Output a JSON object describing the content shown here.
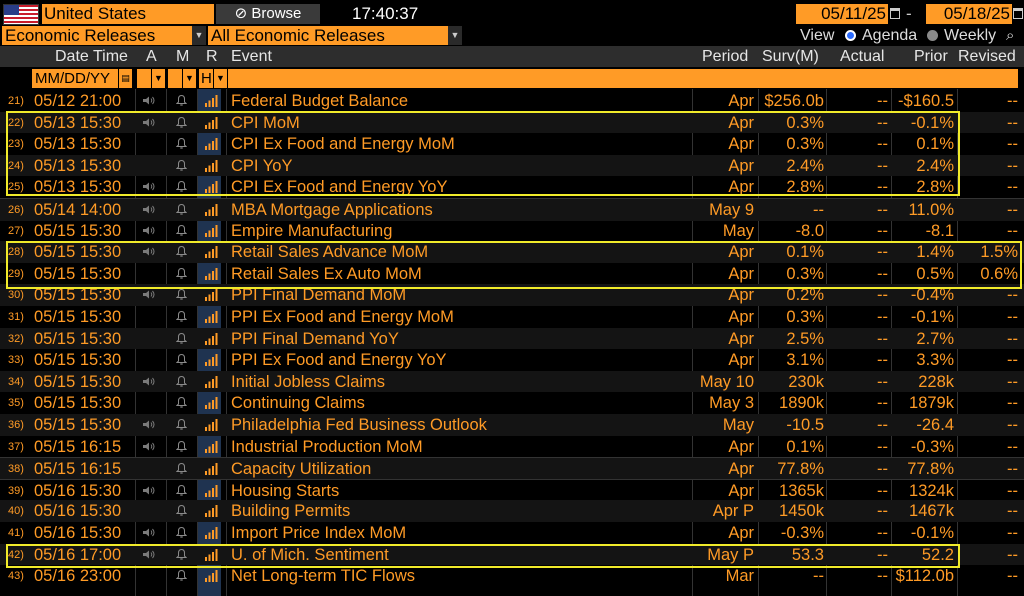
{
  "topbar": {
    "country": "United States",
    "browse_label": "Browse",
    "clock": "17:40:37",
    "start_date": "05/11/25",
    "end_date": "05/18/25",
    "date_dash": "-"
  },
  "filters": {
    "category": "Economic Releases",
    "releases": "All Economic Releases",
    "view_label": "View",
    "view_options": [
      "Agenda",
      "Weekly"
    ],
    "selected_view": "Agenda"
  },
  "columns": {
    "datetime": "Date Time",
    "a": "A",
    "m": "M",
    "r": "R",
    "event": "Event",
    "period": "Period",
    "surv": "Surv(M)",
    "actual": "Actual",
    "prior": "Prior",
    "revised": "Revised"
  },
  "filter_row": {
    "date_format": "MM/DD/YY",
    "r_value": "H"
  },
  "colors": {
    "accent": "#ff9b26",
    "highlight_box": "#f0ea2a",
    "r_column": "#1f3350"
  },
  "rows": [
    {
      "num": "21)",
      "dt": "05/12 21:00",
      "event": "Federal Budget Balance",
      "period": "Apr",
      "surv": "$256.0b",
      "actual": "--",
      "prior": "-$160.5",
      "revised": "--",
      "audio": true
    },
    {
      "num": "22)",
      "dt": "05/13 15:30",
      "event": "CPI MoM",
      "period": "Apr",
      "surv": "0.3%",
      "actual": "--",
      "prior": "-0.1%",
      "revised": "--",
      "audio": true
    },
    {
      "num": "23)",
      "dt": "05/13 15:30",
      "event": "CPI Ex Food and Energy MoM",
      "period": "Apr",
      "surv": "0.3%",
      "actual": "--",
      "prior": "0.1%",
      "revised": "--",
      "audio": false
    },
    {
      "num": "24)",
      "dt": "05/13 15:30",
      "event": "CPI YoY",
      "period": "Apr",
      "surv": "2.4%",
      "actual": "--",
      "prior": "2.4%",
      "revised": "--",
      "audio": false
    },
    {
      "num": "25)",
      "dt": "05/13 15:30",
      "event": "CPI Ex Food and Energy YoY",
      "period": "Apr",
      "surv": "2.8%",
      "actual": "--",
      "prior": "2.8%",
      "revised": "--",
      "audio": true
    },
    {
      "num": "26)",
      "dt": "05/14 14:00",
      "event": "MBA Mortgage Applications",
      "period": "May 9",
      "surv": "--",
      "actual": "--",
      "prior": "11.0%",
      "revised": "--",
      "audio": true
    },
    {
      "num": "27)",
      "dt": "05/15 15:30",
      "event": "Empire Manufacturing",
      "period": "May",
      "surv": "-8.0",
      "actual": "--",
      "prior": "-8.1",
      "revised": "--",
      "audio": true
    },
    {
      "num": "28)",
      "dt": "05/15 15:30",
      "event": "Retail Sales Advance MoM",
      "period": "Apr",
      "surv": "0.1%",
      "actual": "--",
      "prior": "1.4%",
      "revised": "1.5%",
      "audio": true
    },
    {
      "num": "29)",
      "dt": "05/15 15:30",
      "event": "Retail Sales Ex Auto MoM",
      "period": "Apr",
      "surv": "0.3%",
      "actual": "--",
      "prior": "0.5%",
      "revised": "0.6%",
      "audio": false
    },
    {
      "num": "30)",
      "dt": "05/15 15:30",
      "event": "PPI Final Demand MoM",
      "period": "Apr",
      "surv": "0.2%",
      "actual": "--",
      "prior": "-0.4%",
      "revised": "--",
      "audio": true
    },
    {
      "num": "31)",
      "dt": "05/15 15:30",
      "event": "PPI Ex Food and Energy MoM",
      "period": "Apr",
      "surv": "0.3%",
      "actual": "--",
      "prior": "-0.1%",
      "revised": "--",
      "audio": false
    },
    {
      "num": "32)",
      "dt": "05/15 15:30",
      "event": "PPI Final Demand YoY",
      "period": "Apr",
      "surv": "2.5%",
      "actual": "--",
      "prior": "2.7%",
      "revised": "--",
      "audio": false
    },
    {
      "num": "33)",
      "dt": "05/15 15:30",
      "event": "PPI Ex Food and Energy YoY",
      "period": "Apr",
      "surv": "3.1%",
      "actual": "--",
      "prior": "3.3%",
      "revised": "--",
      "audio": false
    },
    {
      "num": "34)",
      "dt": "05/15 15:30",
      "event": "Initial Jobless Claims",
      "period": "May 10",
      "surv": "230k",
      "actual": "--",
      "prior": "228k",
      "revised": "--",
      "audio": true
    },
    {
      "num": "35)",
      "dt": "05/15 15:30",
      "event": "Continuing Claims",
      "period": "May 3",
      "surv": "1890k",
      "actual": "--",
      "prior": "1879k",
      "revised": "--",
      "audio": false
    },
    {
      "num": "36)",
      "dt": "05/15 15:30",
      "event": "Philadelphia Fed Business Outlook",
      "period": "May",
      "surv": "-10.5",
      "actual": "--",
      "prior": "-26.4",
      "revised": "--",
      "audio": true
    },
    {
      "num": "37)",
      "dt": "05/15 16:15",
      "event": "Industrial Production MoM",
      "period": "Apr",
      "surv": "0.1%",
      "actual": "--",
      "prior": "-0.3%",
      "revised": "--",
      "audio": true
    },
    {
      "num": "38)",
      "dt": "05/15 16:15",
      "event": "Capacity Utilization",
      "period": "Apr",
      "surv": "77.8%",
      "actual": "--",
      "prior": "77.8%",
      "revised": "--",
      "audio": false
    },
    {
      "num": "39)",
      "dt": "05/16 15:30",
      "event": "Housing Starts",
      "period": "Apr",
      "surv": "1365k",
      "actual": "--",
      "prior": "1324k",
      "revised": "--",
      "audio": true
    },
    {
      "num": "40)",
      "dt": "05/16 15:30",
      "event": "Building Permits",
      "period": "Apr P",
      "surv": "1450k",
      "actual": "--",
      "prior": "1467k",
      "revised": "--",
      "audio": false
    },
    {
      "num": "41)",
      "dt": "05/16 15:30",
      "event": "Import Price Index MoM",
      "period": "Apr",
      "surv": "-0.3%",
      "actual": "--",
      "prior": "-0.1%",
      "revised": "--",
      "audio": true
    },
    {
      "num": "42)",
      "dt": "05/16 17:00",
      "event": "U. of Mich. Sentiment",
      "period": "May P",
      "surv": "53.3",
      "actual": "--",
      "prior": "52.2",
      "revised": "--",
      "audio": true
    },
    {
      "num": "43)",
      "dt": "05/16 23:00",
      "event": "Net Long-term TIC Flows",
      "period": "Mar",
      "surv": "--",
      "actual": "--",
      "prior": "$112.0b",
      "revised": "--",
      "audio": false
    }
  ]
}
